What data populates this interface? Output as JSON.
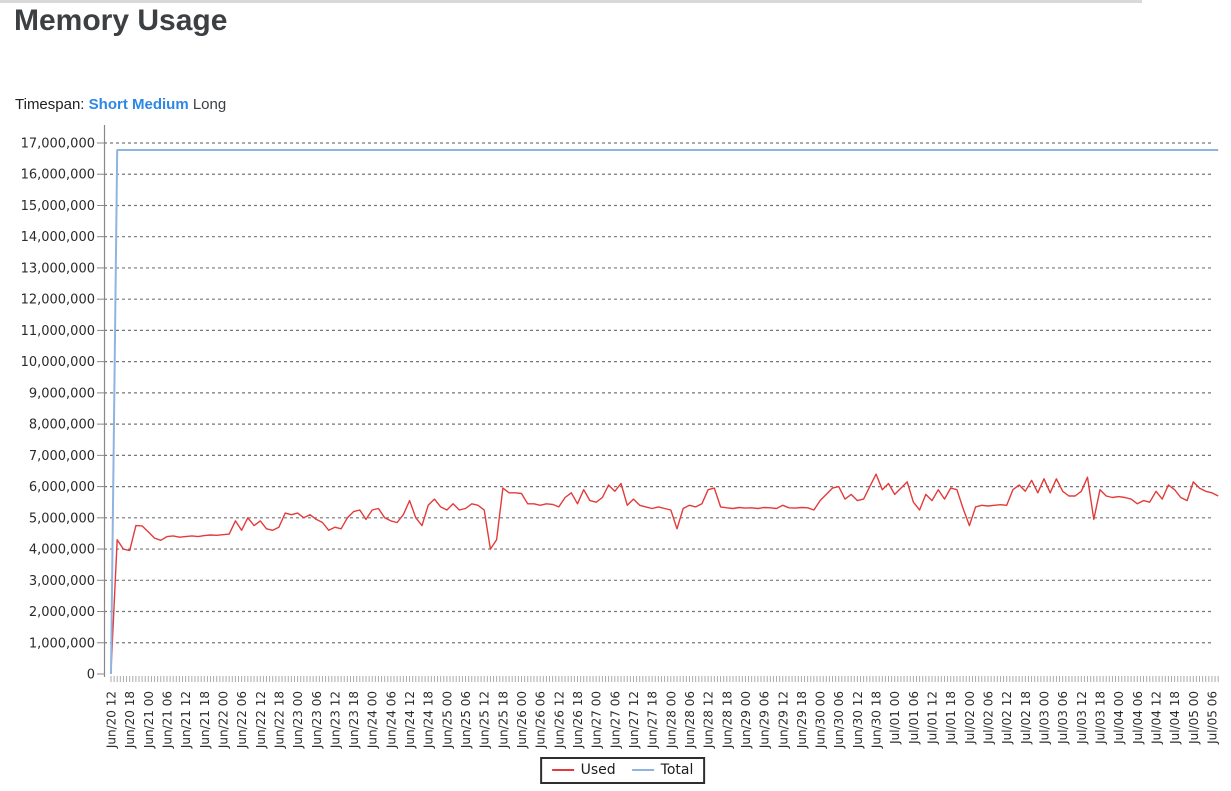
{
  "page": {
    "title": "Memory Usage"
  },
  "timespan": {
    "label": "Timespan:",
    "options": [
      {
        "label": "Short",
        "link": true
      },
      {
        "label": "Medium",
        "link": true
      },
      {
        "label": "Long",
        "link": false
      }
    ]
  },
  "chart_data": {
    "type": "line",
    "title": "Memory Usage",
    "xlabel": "",
    "ylabel": "",
    "grid": true,
    "legend_position": "bottom-center",
    "y_axis": {
      "min": 0,
      "max": 17000000,
      "tick_step": 1000000,
      "tick_format": "thousands-commas"
    },
    "sample_interval_hours": 2,
    "label_interval_hours": 6,
    "x_labels": [
      "Jun/20 12",
      "Jun/20 18",
      "Jun/21 00",
      "Jun/21 06",
      "Jun/21 12",
      "Jun/21 18",
      "Jun/22 00",
      "Jun/22 06",
      "Jun/22 12",
      "Jun/22 18",
      "Jun/23 00",
      "Jun/23 06",
      "Jun/23 12",
      "Jun/23 18",
      "Jun/24 00",
      "Jun/24 06",
      "Jun/24 12",
      "Jun/24 18",
      "Jun/25 00",
      "Jun/25 06",
      "Jun/25 12",
      "Jun/25 18",
      "Jun/26 00",
      "Jun/26 06",
      "Jun/26 12",
      "Jun/26 18",
      "Jun/27 00",
      "Jun/27 06",
      "Jun/27 12",
      "Jun/27 18",
      "Jun/28 00",
      "Jun/28 06",
      "Jun/28 12",
      "Jun/28 18",
      "Jun/29 00",
      "Jun/29 06",
      "Jun/29 12",
      "Jun/29 18",
      "Jun/30 00",
      "Jun/30 06",
      "Jun/30 12",
      "Jun/30 18",
      "Jul/01 00",
      "Jul/01 06",
      "Jul/01 12",
      "Jul/01 18",
      "Jul/02 00",
      "Jul/02 06",
      "Jul/02 12",
      "Jul/02 18",
      "Jul/03 00",
      "Jul/03 06",
      "Jul/03 12",
      "Jul/03 18",
      "Jul/04 00",
      "Jul/04 06",
      "Jul/04 12",
      "Jul/04 18",
      "Jul/05 00",
      "Jul/05 06"
    ],
    "series": [
      {
        "name": "Used",
        "color": "#e33b3b",
        "values": [
          100000,
          4300000,
          4000000,
          3950000,
          4750000,
          4740000,
          4550000,
          4350000,
          4280000,
          4400000,
          4420000,
          4380000,
          4400000,
          4420000,
          4400000,
          4430000,
          4450000,
          4440000,
          4460000,
          4480000,
          4900000,
          4600000,
          5000000,
          4750000,
          4900000,
          4650000,
          4600000,
          4700000,
          5150000,
          5100000,
          5150000,
          5000000,
          5100000,
          4950000,
          4850000,
          4600000,
          4700000,
          4650000,
          5000000,
          5200000,
          5250000,
          4950000,
          5250000,
          5300000,
          5000000,
          4900000,
          4850000,
          5100000,
          5550000,
          5000000,
          4750000,
          5400000,
          5600000,
          5350000,
          5250000,
          5450000,
          5250000,
          5300000,
          5450000,
          5400000,
          5250000,
          4000000,
          4300000,
          5950000,
          5800000,
          5800000,
          5780000,
          5450000,
          5450000,
          5400000,
          5450000,
          5430000,
          5350000,
          5650000,
          5800000,
          5450000,
          5900000,
          5550000,
          5500000,
          5650000,
          6050000,
          5850000,
          6100000,
          5400000,
          5600000,
          5400000,
          5350000,
          5300000,
          5350000,
          5300000,
          5250000,
          4650000,
          5300000,
          5400000,
          5350000,
          5450000,
          5900000,
          5950000,
          5350000,
          5320000,
          5300000,
          5330000,
          5310000,
          5320000,
          5300000,
          5330000,
          5320000,
          5300000,
          5400000,
          5320000,
          5310000,
          5330000,
          5320000,
          5250000,
          5550000,
          5750000,
          5950000,
          6000000,
          5600000,
          5750000,
          5550000,
          5600000,
          6000000,
          6400000,
          5900000,
          6100000,
          5750000,
          5950000,
          6150000,
          5500000,
          5250000,
          5750000,
          5550000,
          5900000,
          5600000,
          5950000,
          5900000,
          5300000,
          4750000,
          5350000,
          5400000,
          5380000,
          5400000,
          5420000,
          5400000,
          5900000,
          6050000,
          5850000,
          6200000,
          5800000,
          6250000,
          5800000,
          6250000,
          5850000,
          5700000,
          5700000,
          5850000,
          6300000,
          4950000,
          5900000,
          5700000,
          5650000,
          5680000,
          5650000,
          5600000,
          5450000,
          5550000,
          5500000,
          5850000,
          5600000,
          6050000,
          5900000,
          5650000,
          5550000,
          6150000,
          5950000,
          5850000,
          5800000,
          5700000
        ]
      },
      {
        "name": "Total",
        "color": "#8fb4e0",
        "values": [
          [
            0,
            0
          ],
          [
            2,
            16777216
          ],
          [
            356,
            16777216
          ]
        ]
      }
    ]
  }
}
